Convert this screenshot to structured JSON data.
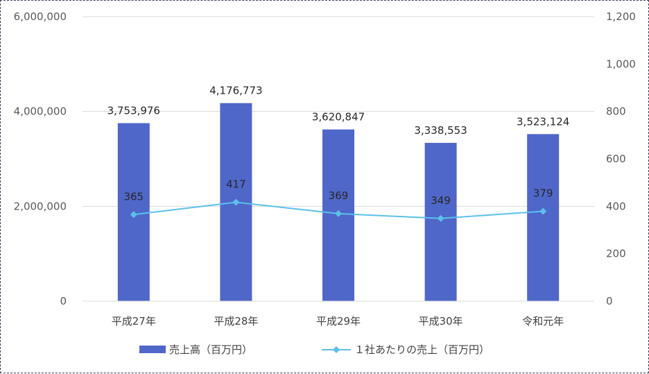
{
  "chart_data": {
    "type": "bar",
    "categories": [
      "平成27年",
      "平成28年",
      "平成29年",
      "平成30年",
      "令和元年"
    ],
    "series": [
      {
        "name": "売上高（百万円）",
        "type": "bar",
        "axis": "left",
        "color": "#4f67c9",
        "values": [
          3753976,
          4176773,
          3620847,
          3338553,
          3523124
        ],
        "labels": [
          "3,753,976",
          "4,176,773",
          "3,620,847",
          "3,338,553",
          "3,523,124"
        ]
      },
      {
        "name": "１社あたりの売上（百万円）",
        "type": "line",
        "axis": "right",
        "color": "#5bc0eb",
        "marker": "diamond",
        "values": [
          365,
          417,
          369,
          349,
          379
        ],
        "labels": [
          "365",
          "417",
          "369",
          "349",
          "379"
        ]
      }
    ],
    "y_left": {
      "range": [
        0,
        6000000
      ],
      "ticks": [
        0,
        2000000,
        4000000,
        6000000
      ],
      "tick_labels": [
        "0",
        "2,000,000",
        "4,000,000",
        "6,000,000"
      ]
    },
    "y_right": {
      "range": [
        0,
        1200
      ],
      "ticks": [
        0,
        200,
        400,
        600,
        800,
        1000,
        1200
      ],
      "tick_labels": [
        "0",
        "200",
        "400",
        "600",
        "800",
        "1,000",
        "1,200"
      ]
    },
    "grid": true,
    "legend": "bottom"
  }
}
